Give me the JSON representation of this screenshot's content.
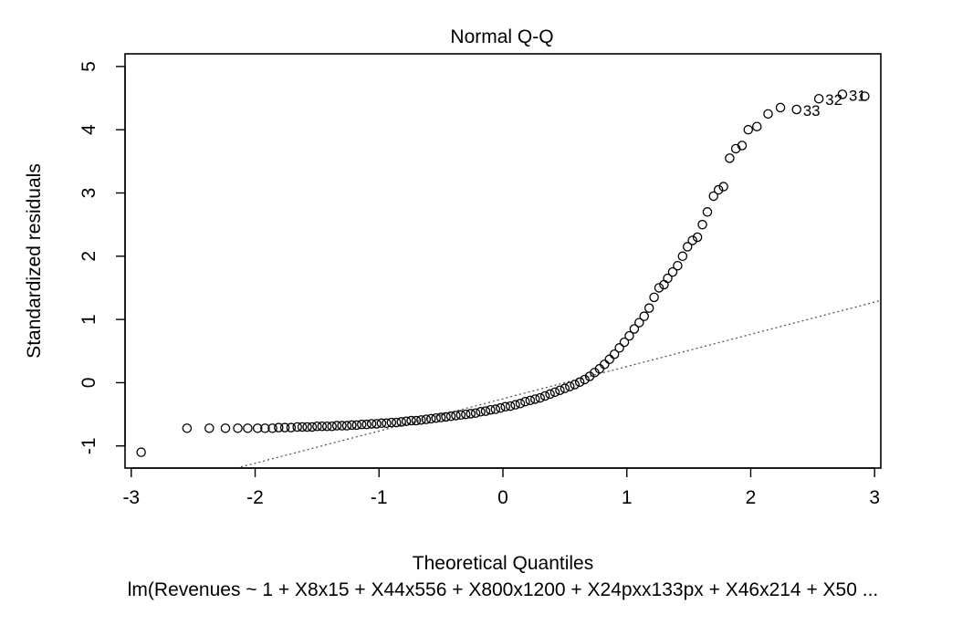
{
  "chart_data": {
    "type": "scatter",
    "title": "Normal Q-Q",
    "xlabel": "Theoretical Quantiles",
    "ylabel": "Standardized residuals",
    "subtitle": "lm(Revenues ~ 1 + X8x15 + X44x556 + X800x1200 + X24pxx133px + X46x214 + X50 ...",
    "xlim": [
      -3.05,
      3.05
    ],
    "ylim": [
      -1.35,
      5.2
    ],
    "x_ticks": [
      "-3",
      "-2",
      "-1",
      "0",
      "1",
      "2",
      "3"
    ],
    "y_ticks": [
      "-1",
      "0",
      "1",
      "2",
      "3",
      "4",
      "5"
    ],
    "grid": false,
    "reference_line": {
      "style": "dotted",
      "x": [
        -2.15,
        3.05
      ],
      "y": [
        -1.35,
        1.3
      ]
    },
    "point_labels": [
      {
        "text": "33",
        "x": 2.37,
        "y": 4.32
      },
      {
        "text": "32",
        "x": 2.55,
        "y": 4.49
      },
      {
        "text": "31",
        "x": 2.74,
        "y": 4.56
      }
    ],
    "points": {
      "x": [
        -2.92,
        -2.55,
        -2.37,
        -2.24,
        -2.14,
        -2.06,
        -1.98,
        -1.92,
        -1.86,
        -1.81,
        -1.76,
        -1.71,
        -1.66,
        -1.62,
        -1.58,
        -1.54,
        -1.5,
        -1.46,
        -1.42,
        -1.38,
        -1.34,
        -1.3,
        -1.26,
        -1.22,
        -1.18,
        -1.14,
        -1.1,
        -1.06,
        -1.02,
        -0.98,
        -0.94,
        -0.9,
        -0.86,
        -0.82,
        -0.78,
        -0.74,
        -0.7,
        -0.66,
        -0.62,
        -0.58,
        -0.54,
        -0.5,
        -0.46,
        -0.42,
        -0.38,
        -0.34,
        -0.3,
        -0.26,
        -0.22,
        -0.18,
        -0.14,
        -0.1,
        -0.06,
        -0.02,
        0.02,
        0.06,
        0.1,
        0.14,
        0.18,
        0.22,
        0.26,
        0.3,
        0.34,
        0.38,
        0.42,
        0.46,
        0.5,
        0.54,
        0.58,
        0.62,
        0.66,
        0.7,
        0.74,
        0.78,
        0.82,
        0.86,
        0.9,
        0.94,
        0.98,
        1.02,
        1.06,
        1.1,
        1.14,
        1.18,
        1.22,
        1.26,
        1.3,
        1.33,
        1.37,
        1.41,
        1.45,
        1.49,
        1.53,
        1.57,
        1.61,
        1.65,
        1.7,
        1.74,
        1.78,
        1.83,
        1.88,
        1.93,
        1.98,
        2.05,
        2.14,
        2.24,
        2.37,
        2.55,
        2.74,
        2.92
      ],
      "y": [
        -1.1,
        -0.72,
        -0.72,
        -0.72,
        -0.72,
        -0.72,
        -0.72,
        -0.72,
        -0.72,
        -0.71,
        -0.71,
        -0.71,
        -0.7,
        -0.7,
        -0.7,
        -0.7,
        -0.69,
        -0.69,
        -0.69,
        -0.69,
        -0.68,
        -0.68,
        -0.68,
        -0.67,
        -0.67,
        -0.66,
        -0.66,
        -0.65,
        -0.65,
        -0.64,
        -0.64,
        -0.63,
        -0.63,
        -0.62,
        -0.61,
        -0.6,
        -0.6,
        -0.59,
        -0.58,
        -0.57,
        -0.56,
        -0.55,
        -0.54,
        -0.53,
        -0.52,
        -0.51,
        -0.5,
        -0.49,
        -0.48,
        -0.46,
        -0.45,
        -0.43,
        -0.42,
        -0.4,
        -0.38,
        -0.37,
        -0.35,
        -0.33,
        -0.3,
        -0.28,
        -0.26,
        -0.24,
        -0.21,
        -0.18,
        -0.15,
        -0.12,
        -0.09,
        -0.06,
        -0.03,
        0.01,
        0.05,
        0.1,
        0.16,
        0.22,
        0.29,
        0.37,
        0.45,
        0.55,
        0.64,
        0.74,
        0.85,
        0.95,
        1.05,
        1.18,
        1.35,
        1.5,
        1.55,
        1.65,
        1.75,
        1.85,
        2.0,
        2.15,
        2.25,
        2.3,
        2.5,
        2.7,
        2.95,
        3.05,
        3.1,
        3.55,
        3.7,
        3.75,
        4.0,
        4.05,
        4.25,
        4.35,
        4.32,
        4.49,
        4.56,
        4.53
      ]
    }
  }
}
